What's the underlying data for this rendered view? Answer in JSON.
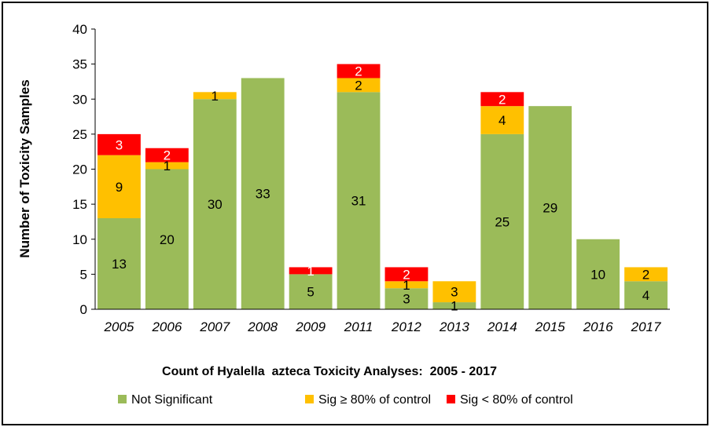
{
  "chart_data": {
    "type": "bar",
    "stacked": true,
    "title": "Count of Hyalella  azteca Toxicity Analyses:  2005 - 2017",
    "xlabel": "",
    "ylabel": "Number of Toxicity Samples",
    "ylim": [
      0,
      40
    ],
    "yticks": [
      "0",
      "5",
      "10",
      "15",
      "20",
      "25",
      "30",
      "35",
      "40"
    ],
    "grid": false,
    "legend_position": "bottom",
    "categories": [
      "2005",
      "2006",
      "2007",
      "2008",
      "2009",
      "2011",
      "2012",
      "2013",
      "2014",
      "2015",
      "2016",
      "2017"
    ],
    "series": [
      {
        "name": "Not Significant",
        "color": "#9bbb59",
        "values": [
          13,
          20,
          30,
          33,
          5,
          31,
          3,
          1,
          25,
          29,
          10,
          4
        ],
        "labels": [
          "13",
          "20",
          "30",
          "33",
          "5",
          "31",
          "3",
          "1",
          "25",
          "29",
          "10",
          "4"
        ]
      },
      {
        "name": "Sig ≥ 80% of control",
        "color": "#ffc000",
        "values": [
          9,
          1,
          1,
          0,
          0,
          2,
          1,
          3,
          4,
          0,
          0,
          2
        ],
        "labels": [
          "9",
          "1",
          "1",
          "",
          "",
          "2",
          "1",
          "3",
          "4",
          "",
          "",
          "2"
        ]
      },
      {
        "name": "Sig < 80% of control",
        "color": "#ff0000",
        "values": [
          3,
          2,
          0,
          0,
          1,
          2,
          2,
          0,
          2,
          0,
          0,
          0
        ],
        "labels": [
          "3",
          "2",
          "",
          "",
          "1",
          "2",
          "2",
          "",
          "2",
          "",
          "",
          ""
        ]
      }
    ]
  }
}
